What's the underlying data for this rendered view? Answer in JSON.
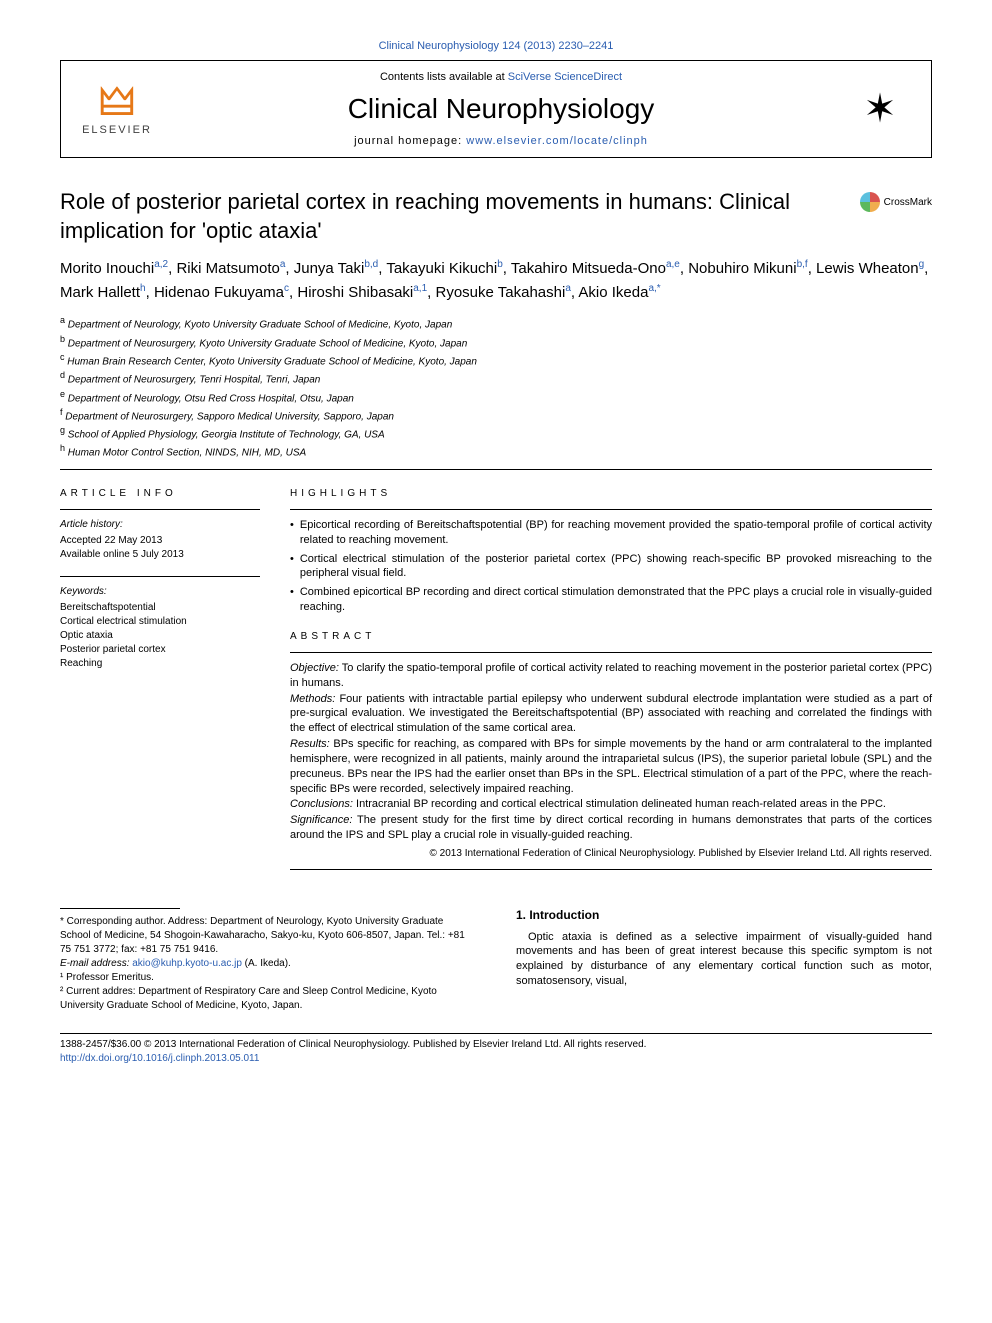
{
  "citation": {
    "journal_link": "Clinical Neurophysiology 124 (2013) 2230–2241"
  },
  "header": {
    "contents": "Contents lists available at ",
    "contents_link": "SciVerse ScienceDirect",
    "journal": "Clinical Neurophysiology",
    "homepage_prefix": "journal homepage: ",
    "homepage_link": "www.elsevier.com/locate/clinph",
    "elsevier": "ELSEVIER"
  },
  "title": "Role of posterior parietal cortex in reaching movements in humans: Clinical implication for 'optic ataxia'",
  "crossmark": "CrossMark",
  "authors": [
    {
      "name": "Morito Inouchi",
      "sup": "a,2"
    },
    {
      "name": "Riki Matsumoto",
      "sup": "a"
    },
    {
      "name": "Junya Taki",
      "sup": "b,d"
    },
    {
      "name": "Takayuki Kikuchi",
      "sup": "b"
    },
    {
      "name": "Takahiro Mitsueda-Ono",
      "sup": "a,e"
    },
    {
      "name": "Nobuhiro Mikuni",
      "sup": "b,f"
    },
    {
      "name": "Lewis Wheaton",
      "sup": "g"
    },
    {
      "name": "Mark Hallett",
      "sup": "h"
    },
    {
      "name": "Hidenao Fukuyama",
      "sup": "c"
    },
    {
      "name": "Hiroshi Shibasaki",
      "sup": "a,1"
    },
    {
      "name": "Ryosuke Takahashi",
      "sup": "a"
    },
    {
      "name": "Akio Ikeda",
      "sup": "a,*"
    }
  ],
  "affiliations": [
    {
      "sup": "a",
      "text": "Department of Neurology, Kyoto University Graduate School of Medicine, Kyoto, Japan"
    },
    {
      "sup": "b",
      "text": "Department of Neurosurgery, Kyoto University Graduate School of Medicine, Kyoto, Japan"
    },
    {
      "sup": "c",
      "text": "Human Brain Research Center, Kyoto University Graduate School of Medicine, Kyoto, Japan"
    },
    {
      "sup": "d",
      "text": "Department of Neurosurgery, Tenri Hospital, Tenri, Japan"
    },
    {
      "sup": "e",
      "text": "Department of Neurology, Otsu Red Cross Hospital, Otsu, Japan"
    },
    {
      "sup": "f",
      "text": "Department of Neurosurgery, Sapporo Medical University, Sapporo, Japan"
    },
    {
      "sup": "g",
      "text": "School of Applied Physiology, Georgia Institute of Technology, GA, USA"
    },
    {
      "sup": "h",
      "text": "Human Motor Control Section, NINDS, NIH, MD, USA"
    }
  ],
  "info": {
    "label": "ARTICLE INFO",
    "history_title": "Article history:",
    "history_line1": "Accepted 22 May 2013",
    "history_line2": "Available online 5 July 2013",
    "keywords_title": "Keywords:",
    "keywords": [
      "Bereitschaftspotential",
      "Cortical electrical stimulation",
      "Optic ataxia",
      "Posterior parietal cortex",
      "Reaching"
    ]
  },
  "highlights": {
    "label": "HIGHLIGHTS",
    "items": [
      "Epicortical recording of Bereitschaftspotential (BP) for reaching movement provided the spatio-temporal profile of cortical activity related to reaching movement.",
      "Cortical electrical stimulation of the posterior parietal cortex (PPC) showing reach-specific BP provoked misreaching to the peripheral visual field.",
      "Combined epicortical BP recording and direct cortical stimulation demonstrated that the PPC plays a crucial role in visually-guided reaching."
    ]
  },
  "abstract": {
    "label": "ABSTRACT",
    "objective_label": "Objective:",
    "objective": " To clarify the spatio-temporal profile of cortical activity related to reaching movement in the posterior parietal cortex (PPC) in humans.",
    "methods_label": "Methods:",
    "methods": " Four patients with intractable partial epilepsy who underwent subdural electrode implantation were studied as a part of pre-surgical evaluation. We investigated the Bereitschaftspotential (BP) associated with reaching and correlated the findings with the effect of electrical stimulation of the same cortical area.",
    "results_label": "Results:",
    "results": " BPs specific for reaching, as compared with BPs for simple movements by the hand or arm contralateral to the implanted hemisphere, were recognized in all patients, mainly around the intraparietal sulcus (IPS), the superior parietal lobule (SPL) and the precuneus. BPs near the IPS had the earlier onset than BPs in the SPL. Electrical stimulation of a part of the PPC, where the reach-specific BPs were recorded, selectively impaired reaching.",
    "conclusions_label": "Conclusions:",
    "conclusions": " Intracranial BP recording and cortical electrical stimulation delineated human reach-related areas in the PPC.",
    "significance_label": "Significance:",
    "significance": " The present study for the first time by direct cortical recording in humans demonstrates that parts of the cortices around the IPS and SPL play a crucial role in visually-guided reaching.",
    "copyright": "© 2013 International Federation of Clinical Neurophysiology. Published by Elsevier Ireland Ltd. All rights reserved."
  },
  "footnotes": {
    "corr": "* Corresponding author. Address: Department of Neurology, Kyoto University Graduate School of Medicine, 54 Shogoin-Kawaharacho, Sakyo-ku, Kyoto 606-8507, Japan. Tel.: +81 75 751 3772; fax: +81 75 751 9416.",
    "email_label": "E-mail address: ",
    "email": "akio@kuhp.kyoto-u.ac.jp",
    "email_suffix": " (A. Ikeda).",
    "n1": "¹ Professor Emeritus.",
    "n2": "² Current addres: Department of Respiratory Care and Sleep Control Medicine, Kyoto University Graduate School of Medicine, Kyoto, Japan."
  },
  "intro": {
    "heading": "1. Introduction",
    "body": "Optic ataxia is defined as a selective impairment of visually-guided hand movements and has been of great interest because this specific symptom is not explained by disturbance of any elementary cortical function such as motor, somatosensory, visual,"
  },
  "doi": {
    "line": "1388-2457/$36.00 © 2013 International Federation of Clinical Neurophysiology. Published by Elsevier Ireland Ltd. All rights reserved.",
    "link": "http://dx.doi.org/10.1016/j.clinph.2013.05.011"
  }
}
